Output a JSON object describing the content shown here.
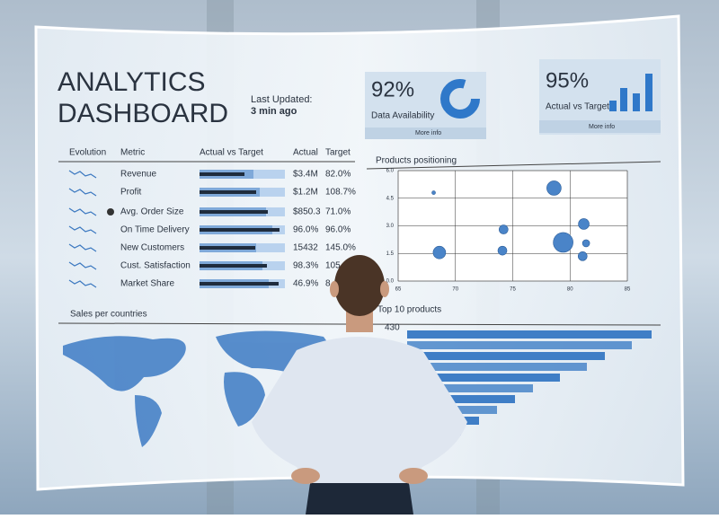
{
  "header": {
    "title_line1": "ANALYTICS",
    "title_line2": "DASHBOARD",
    "updated_label": "Last Updated:",
    "updated_value": "3 min ago"
  },
  "kpis": [
    {
      "value": "92%",
      "label": "Data Availability",
      "link": "More info"
    },
    {
      "value": "95%",
      "label": "Actual vs Target",
      "link": "More info"
    }
  ],
  "metrics_table": {
    "headers": [
      "Evolution",
      "Metric",
      "Actual vs Target",
      "Actual",
      "Target"
    ],
    "rows": [
      [
        "Revenue",
        "$3.4M",
        "82.0%"
      ],
      [
        "Profit",
        "$1.2M",
        "108.7%"
      ],
      [
        "Avg. Order Size",
        "$850.3",
        "71.0%"
      ],
      [
        "On Time Delivery",
        "96.0%",
        "96.0%"
      ],
      [
        "New Customers",
        "15432",
        "145.0%"
      ],
      [
        "Cust. Satisfaction",
        "98.3%",
        "105"
      ],
      [
        "Market Share",
        "46.9%",
        "8"
      ]
    ]
  },
  "products_positioning": {
    "title": "Products positioning",
    "xlim": [
      65,
      85
    ],
    "ylim": [
      0,
      6
    ],
    "xticks": [
      65,
      70,
      75,
      80,
      85
    ],
    "yticks": [
      {
        "value": 6,
        "label": "6.0"
      },
      {
        "value": 4.5,
        "label": "4.5"
      },
      {
        "value": 3,
        "label": "3.0"
      },
      {
        "value": 1.5,
        "label": "1.5"
      },
      {
        "value": 0,
        "label": "0.0"
      }
    ],
    "x": [
      68.1,
      78.6,
      74.2,
      81.2,
      68.6,
      74.1,
      79.4,
      81.4,
      81.1
    ],
    "y": [
      4.8,
      5.05,
      2.8,
      3.1,
      1.55,
      1.65,
      2.1,
      2.05,
      1.35
    ],
    "size": [
      2,
      8,
      5,
      6,
      7,
      5,
      11,
      4,
      5
    ]
  },
  "sales_map": {
    "title": "Sales per countries"
  },
  "top_products": {
    "title": "Top 10 products",
    "max_label": "430"
  }
}
